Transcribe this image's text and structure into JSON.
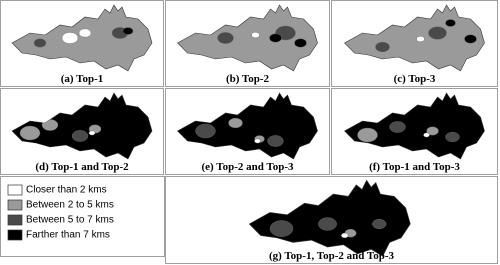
{
  "panels": [
    {
      "caption": "(a)  Top-1"
    },
    {
      "caption": "(b)  Top-2"
    },
    {
      "caption": "(c)  Top-3"
    },
    {
      "caption": "(d)  Top-1 and Top-2"
    },
    {
      "caption": "(e)  Top-2 and Top-3"
    },
    {
      "caption": "(f)  Top-1 and Top-3"
    },
    {
      "caption": "(g)  Top-1, Top-2 and Top-3"
    }
  ],
  "legend": [
    {
      "label": "Closer than 2 kms",
      "color": "#ffffff"
    },
    {
      "label": "Between 2 to 5 kms",
      "color": "#9a9a9a"
    },
    {
      "label": "Between 5 to 7 kms",
      "color": "#4a4a4a"
    },
    {
      "label": "Farther than 7 kms",
      "color": "#000000"
    }
  ]
}
